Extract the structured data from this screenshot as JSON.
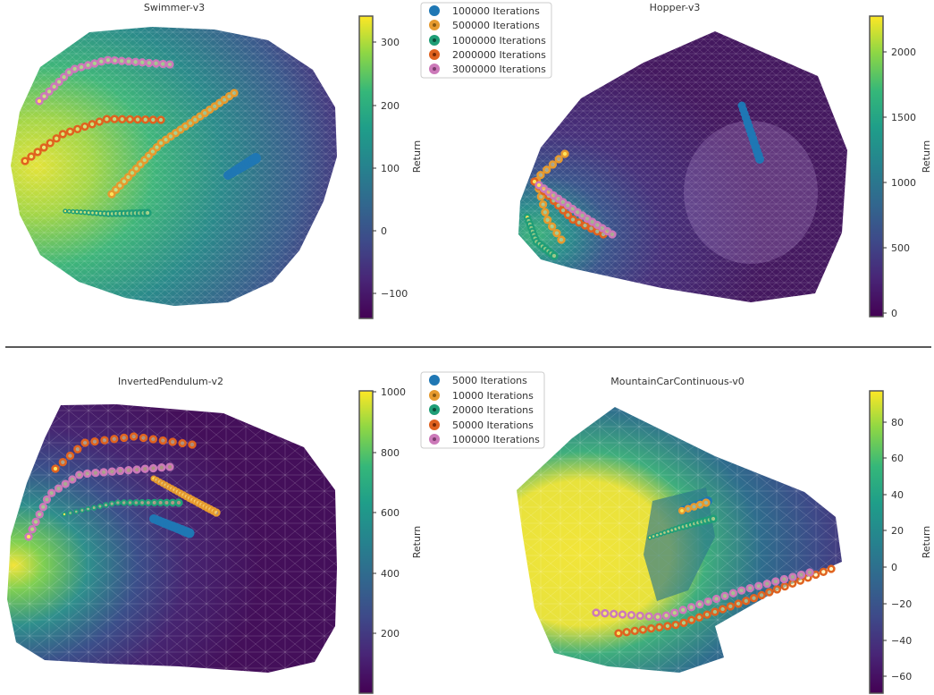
{
  "chart_data": [
    {
      "type": "scatter",
      "title": "Swimmer-v3",
      "colorbar": {
        "label": "Return",
        "ticks": [
          "300",
          "200",
          "100",
          "0",
          "−100"
        ],
        "range": [
          -145,
          345
        ]
      },
      "legend": [
        "100000 Iterations",
        "500000 Iterations",
        "1000000 Iterations",
        "2000000 Iterations",
        "3000000 Iterations"
      ],
      "legend_colors": [
        "#1f77b4",
        "#e69a2e",
        "#1f9e77",
        "#e0621f",
        "#cc79b9"
      ]
    },
    {
      "type": "scatter",
      "title": "Hopper-v3",
      "colorbar": {
        "label": "Return",
        "ticks": [
          "2000",
          "1500",
          "1000",
          "500",
          "0"
        ],
        "range": [
          -30,
          2290
        ]
      }
    },
    {
      "type": "scatter",
      "title": "InvertedPendulum-v2",
      "colorbar": {
        "label": "Return",
        "ticks": [
          "1000",
          "800",
          "600",
          "400",
          "200"
        ],
        "range": [
          0,
          1000
        ]
      },
      "legend": [
        "5000 Iterations",
        "10000 Iterations",
        "20000 Iterations",
        "50000 Iterations",
        "100000 Iterations"
      ],
      "legend_colors": [
        "#1f77b4",
        "#e69a2e",
        "#1f9e77",
        "#e0621f",
        "#cc79b9"
      ]
    },
    {
      "type": "scatter",
      "title": "MountainCarContinuous-v0",
      "colorbar": {
        "label": "Return",
        "ticks": [
          "80",
          "60",
          "40",
          "20",
          "0",
          "−20",
          "−40",
          "−60"
        ],
        "range": [
          -70,
          98
        ]
      }
    }
  ]
}
